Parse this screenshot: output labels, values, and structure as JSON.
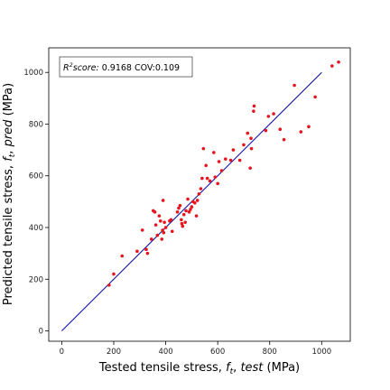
{
  "chart_data": {
    "type": "scatter",
    "xlabel": "Tested tensile stress, f_t, test (MPa)",
    "xlabel_parts": {
      "pre": "Tested tensile stress, ",
      "f": "f",
      "sub": "t",
      "comma": ", ",
      "italic": "test",
      "unit": " (MPa)"
    },
    "ylabel": "Predicted tensile stress, f_t, pred (MPa)",
    "ylabel_parts": {
      "pre": "Predicted tensile stress, ",
      "f": "f",
      "sub": "t",
      "comma": ", ",
      "italic": "pred",
      "unit": " (MPa)"
    },
    "xlim": [
      -50,
      1110
    ],
    "ylim": [
      -40,
      1095
    ],
    "x_ticks": [
      0,
      200,
      400,
      600,
      800,
      1000
    ],
    "y_ticks": [
      0,
      200,
      400,
      600,
      800,
      1000
    ],
    "grid": false,
    "annotation": {
      "r2_label": "R",
      "r2_sup": "2",
      "r2_suffix": "score:",
      "text": " 0.9168 COV:0.109",
      "placement": "top-left"
    },
    "colors": {
      "points": "#e8141d",
      "line": "#1010a8"
    },
    "reference_line": {
      "x": [
        0,
        1000
      ],
      "y": [
        0,
        1000
      ]
    },
    "points": [
      [
        182,
        177
      ],
      [
        200,
        220
      ],
      [
        232,
        290
      ],
      [
        290,
        308
      ],
      [
        310,
        390
      ],
      [
        325,
        315
      ],
      [
        330,
        300
      ],
      [
        345,
        355
      ],
      [
        352,
        465
      ],
      [
        358,
        460
      ],
      [
        362,
        410
      ],
      [
        368,
        370
      ],
      [
        375,
        445
      ],
      [
        380,
        425
      ],
      [
        385,
        355
      ],
      [
        388,
        390
      ],
      [
        390,
        505
      ],
      [
        392,
        380
      ],
      [
        395,
        420
      ],
      [
        400,
        400
      ],
      [
        415,
        425
      ],
      [
        420,
        430
      ],
      [
        425,
        385
      ],
      [
        445,
        460
      ],
      [
        450,
        475
      ],
      [
        455,
        485
      ],
      [
        460,
        430
      ],
      [
        462,
        415
      ],
      [
        465,
        405
      ],
      [
        470,
        450
      ],
      [
        475,
        420
      ],
      [
        478,
        465
      ],
      [
        485,
        510
      ],
      [
        490,
        460
      ],
      [
        495,
        470
      ],
      [
        500,
        480
      ],
      [
        505,
        500
      ],
      [
        512,
        495
      ],
      [
        518,
        445
      ],
      [
        522,
        505
      ],
      [
        528,
        530
      ],
      [
        535,
        550
      ],
      [
        540,
        590
      ],
      [
        545,
        705
      ],
      [
        555,
        640
      ],
      [
        560,
        590
      ],
      [
        570,
        580
      ],
      [
        585,
        690
      ],
      [
        590,
        595
      ],
      [
        600,
        570
      ],
      [
        605,
        655
      ],
      [
        615,
        620
      ],
      [
        630,
        665
      ],
      [
        650,
        660
      ],
      [
        660,
        700
      ],
      [
        685,
        660
      ],
      [
        700,
        720
      ],
      [
        715,
        765
      ],
      [
        725,
        630
      ],
      [
        728,
        745
      ],
      [
        730,
        705
      ],
      [
        738,
        850
      ],
      [
        740,
        870
      ],
      [
        785,
        775
      ],
      [
        795,
        830
      ],
      [
        815,
        840
      ],
      [
        840,
        780
      ],
      [
        855,
        740
      ],
      [
        895,
        950
      ],
      [
        920,
        770
      ],
      [
        950,
        790
      ],
      [
        975,
        905
      ],
      [
        1040,
        1025
      ],
      [
        1065,
        1040
      ]
    ]
  }
}
